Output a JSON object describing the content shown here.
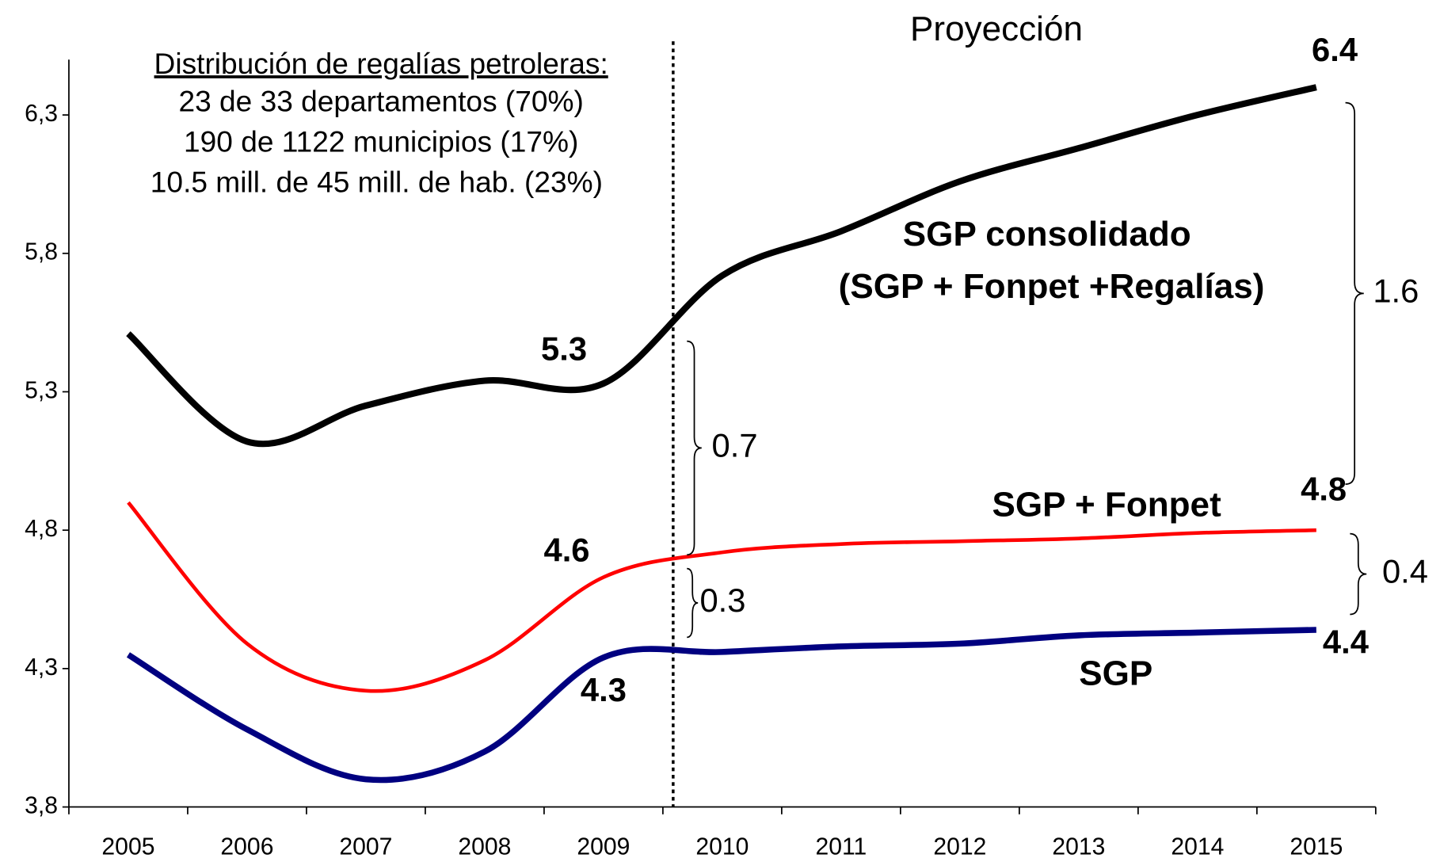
{
  "chart_data": {
    "type": "line",
    "title": "Proyección",
    "note_title": "Distribución de regalías petroleras:",
    "note_lines": [
      "23 de 33 departamentos (70%)",
      "190 de 1122 municipios (17%)",
      "10.5 mill. de 45 mill. de hab. (23%)"
    ],
    "categories": [
      "2005",
      "2006",
      "2007",
      "2008",
      "2009",
      "2010",
      "2011",
      "2012",
      "2013",
      "2014",
      "2015"
    ],
    "ylim": [
      3.8,
      6.5
    ],
    "yticks": [
      {
        "value": 3.8,
        "label": "3,8"
      },
      {
        "value": 4.3,
        "label": "4,3"
      },
      {
        "value": 4.8,
        "label": "4,8"
      },
      {
        "value": 5.3,
        "label": "5,3"
      },
      {
        "value": 5.8,
        "label": "5,8"
      },
      {
        "value": 6.3,
        "label": "6,3"
      }
    ],
    "grid": false,
    "series": [
      {
        "name": "SGP consolidado",
        "color": "#000000",
        "values": [
          5.51,
          5.12,
          5.25,
          5.34,
          5.33,
          5.72,
          5.88,
          6.06,
          6.18,
          6.3,
          6.4
        ],
        "value_labels": [
          null,
          null,
          null,
          null,
          "5.3",
          null,
          null,
          null,
          null,
          null,
          "6.4"
        ]
      },
      {
        "name": "SGP + Fonpet",
        "color": "#ff0000",
        "values": [
          4.9,
          4.39,
          4.22,
          4.33,
          4.63,
          4.72,
          4.75,
          4.76,
          4.77,
          4.79,
          4.8
        ],
        "value_labels": [
          null,
          null,
          null,
          null,
          "4.6",
          null,
          null,
          null,
          null,
          null,
          "4.8"
        ]
      },
      {
        "name": "SGP",
        "color": "#000080",
        "values": [
          4.35,
          4.08,
          3.9,
          4.0,
          4.34,
          4.36,
          4.38,
          4.39,
          4.42,
          4.43,
          4.44
        ],
        "value_labels": [
          null,
          null,
          null,
          null,
          "4.3",
          null,
          null,
          null,
          null,
          null,
          "4.4"
        ]
      }
    ],
    "annotations": [
      "(SGP + Fonpet +Regalías)",
      "0.7",
      "0.3",
      "1.6",
      "0.4"
    ]
  }
}
